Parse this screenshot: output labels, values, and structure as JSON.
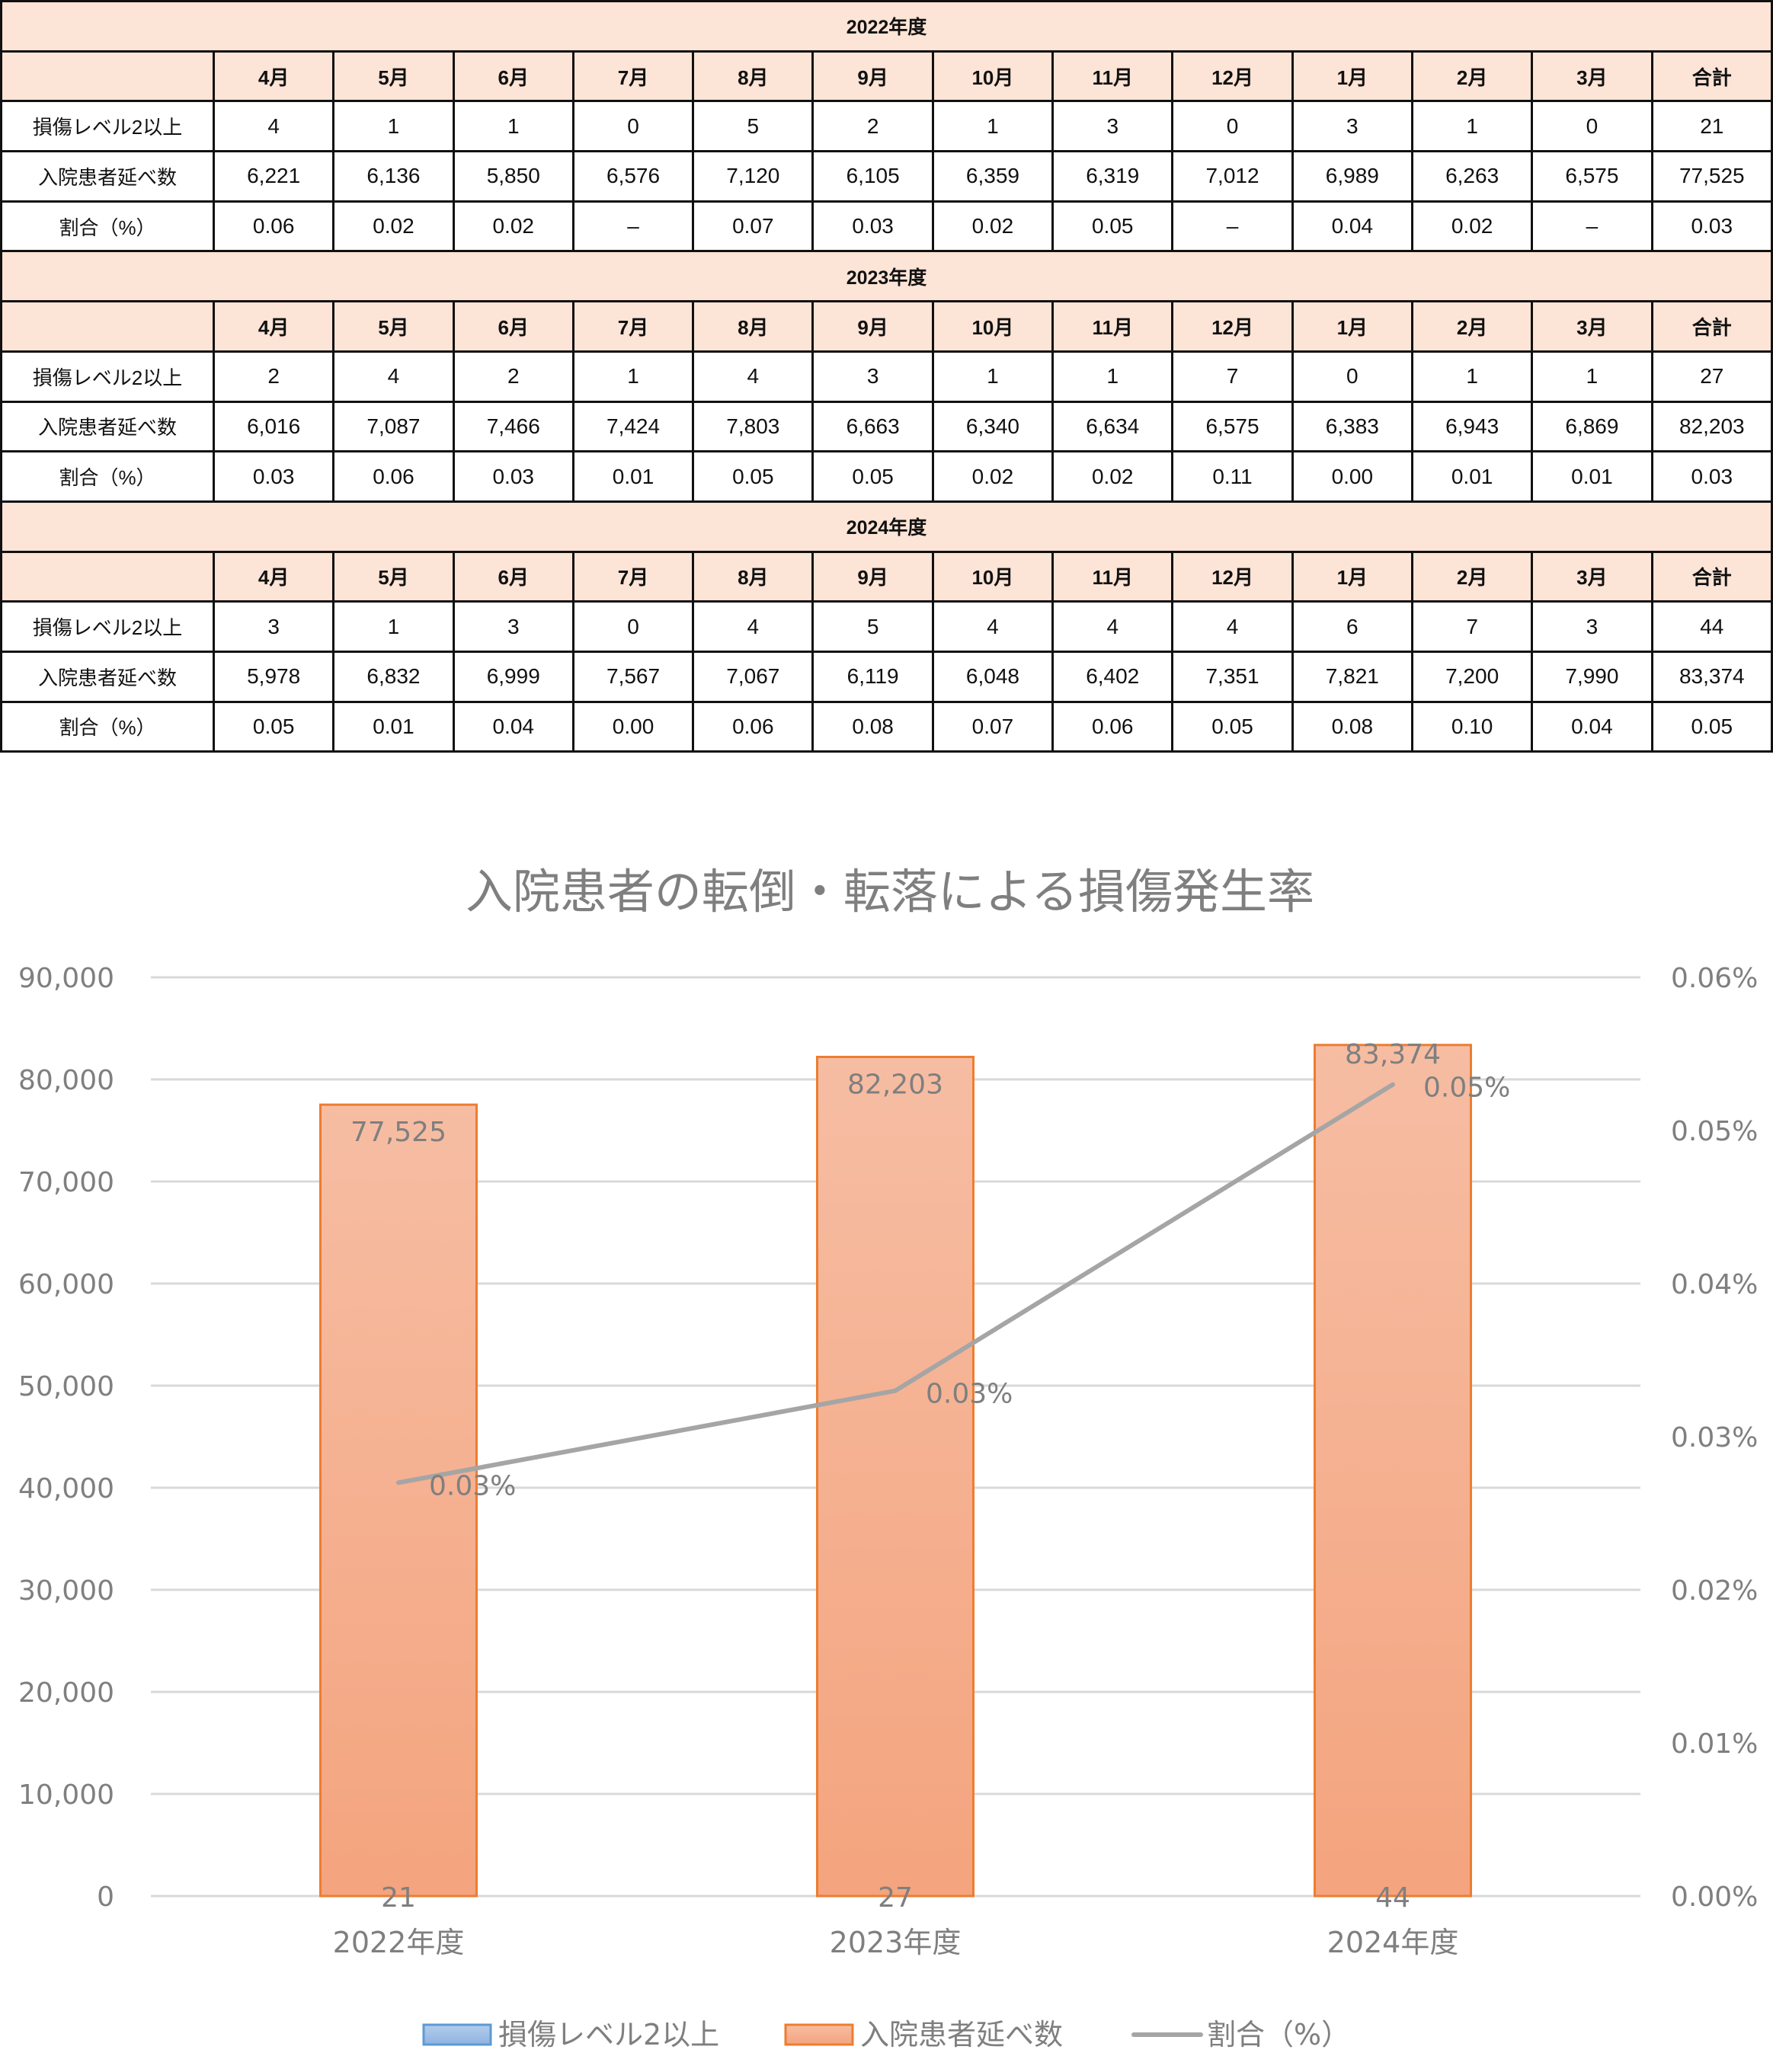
{
  "table": {
    "row_labels": [
      "損傷レベル2以上",
      "入院患者延べ数",
      "割合（%）"
    ],
    "columns": [
      "4月",
      "5月",
      "6月",
      "7月",
      "8月",
      "9月",
      "10月",
      "11月",
      "12月",
      "1月",
      "2月",
      "3月",
      "合計"
    ],
    "years": [
      {
        "title": "2022年度",
        "rows": [
          [
            "4",
            "1",
            "1",
            "0",
            "5",
            "2",
            "1",
            "3",
            "0",
            "3",
            "1",
            "0",
            "21"
          ],
          [
            "6,221",
            "6,136",
            "5,850",
            "6,576",
            "7,120",
            "6,105",
            "6,359",
            "6,319",
            "7,012",
            "6,989",
            "6,263",
            "6,575",
            "77,525"
          ],
          [
            "0.06",
            "0.02",
            "0.02",
            "–",
            "0.07",
            "0.03",
            "0.02",
            "0.05",
            "–",
            "0.04",
            "0.02",
            "–",
            "0.03"
          ]
        ]
      },
      {
        "title": "2023年度",
        "rows": [
          [
            "2",
            "4",
            "2",
            "1",
            "4",
            "3",
            "1",
            "1",
            "7",
            "0",
            "1",
            "1",
            "27"
          ],
          [
            "6,016",
            "7,087",
            "7,466",
            "7,424",
            "7,803",
            "6,663",
            "6,340",
            "6,634",
            "6,575",
            "6,383",
            "6,943",
            "6,869",
            "82,203"
          ],
          [
            "0.03",
            "0.06",
            "0.03",
            "0.01",
            "0.05",
            "0.05",
            "0.02",
            "0.02",
            "0.11",
            "0.00",
            "0.01",
            "0.01",
            "0.03"
          ]
        ]
      },
      {
        "title": "2024年度",
        "rows": [
          [
            "3",
            "1",
            "3",
            "0",
            "4",
            "5",
            "4",
            "4",
            "4",
            "6",
            "7",
            "3",
            "44"
          ],
          [
            "5,978",
            "6,832",
            "6,999",
            "7,567",
            "7,067",
            "6,119",
            "6,048",
            "6,402",
            "7,351",
            "7,821",
            "7,200",
            "7,990",
            "83,374"
          ],
          [
            "0.05",
            "0.01",
            "0.04",
            "0.00",
            "0.06",
            "0.08",
            "0.07",
            "0.06",
            "0.05",
            "0.08",
            "0.10",
            "0.04",
            "0.05"
          ]
        ]
      }
    ],
    "colors": {
      "header_bg": "#fce4d6",
      "border": "#111111"
    }
  },
  "chart_data": {
    "type": "bar",
    "title": "入院患者の転倒・転落による損傷発生率",
    "categories": [
      "2022年度",
      "2023年度",
      "2024年度"
    ],
    "series": [
      {
        "name": "損傷レベル2以上",
        "type": "bar",
        "axis": "left",
        "values": [
          21,
          27,
          44
        ],
        "labels": [
          "21",
          "27",
          "44"
        ],
        "color": "#9dc3e6"
      },
      {
        "name": "入院患者延べ数",
        "type": "bar",
        "axis": "left",
        "values": [
          77525,
          82203,
          83374
        ],
        "labels": [
          "77,525",
          "82,203",
          "83,374"
        ],
        "color": "#f4b183",
        "border": "#ed7d31"
      },
      {
        "name": "割合（%）",
        "type": "line",
        "axis": "right",
        "values": [
          0.027,
          0.033,
          0.053
        ],
        "labels": [
          "0.03%",
          "0.03%",
          "0.05%"
        ],
        "color": "#a5a5a5"
      }
    ],
    "left_axis": {
      "ylim": [
        0,
        90000
      ],
      "ticks": [
        "0",
        "10,000",
        "20,000",
        "30,000",
        "40,000",
        "50,000",
        "60,000",
        "70,000",
        "80,000",
        "90,000"
      ]
    },
    "right_axis": {
      "ylim": [
        0,
        0.06
      ],
      "ticks": [
        "0.00%",
        "0.01%",
        "0.02%",
        "0.03%",
        "0.04%",
        "0.05%",
        "0.06%"
      ]
    },
    "grid": true,
    "legend_position": "bottom",
    "xlabel": "",
    "ylabel": ""
  }
}
